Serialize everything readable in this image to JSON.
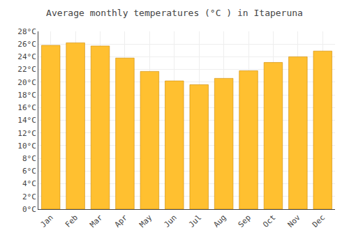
{
  "chart_data": {
    "type": "bar",
    "title": "Average monthly temperatures (°C ) in Itaperuna",
    "categories": [
      "Jan",
      "Feb",
      "Mar",
      "Apr",
      "May",
      "Jun",
      "Jul",
      "Aug",
      "Sep",
      "Oct",
      "Nov",
      "Dec"
    ],
    "values": [
      25.8,
      26.2,
      25.7,
      23.8,
      21.7,
      20.2,
      19.6,
      20.6,
      21.8,
      23.1,
      24.0,
      24.9
    ],
    "color": "#FFC030",
    "ylim": [
      0,
      28
    ],
    "yticks": [
      {
        "value": 0,
        "label": "0°C"
      },
      {
        "value": 2,
        "label": "2°C"
      },
      {
        "value": 4,
        "label": "4°C"
      },
      {
        "value": 6,
        "label": "6°C"
      },
      {
        "value": 8,
        "label": "8°C"
      },
      {
        "value": 10,
        "label": "10°C"
      },
      {
        "value": 12,
        "label": "12°C"
      },
      {
        "value": 14,
        "label": "14°C"
      },
      {
        "value": 16,
        "label": "16°C"
      },
      {
        "value": 18,
        "label": "18°C"
      },
      {
        "value": 20,
        "label": "20°C"
      },
      {
        "value": 22,
        "label": "22°C"
      },
      {
        "value": 24,
        "label": "24°C"
      },
      {
        "value": 26,
        "label": "26°C"
      },
      {
        "value": 28,
        "label": "28°C"
      }
    ],
    "grid": true
  }
}
